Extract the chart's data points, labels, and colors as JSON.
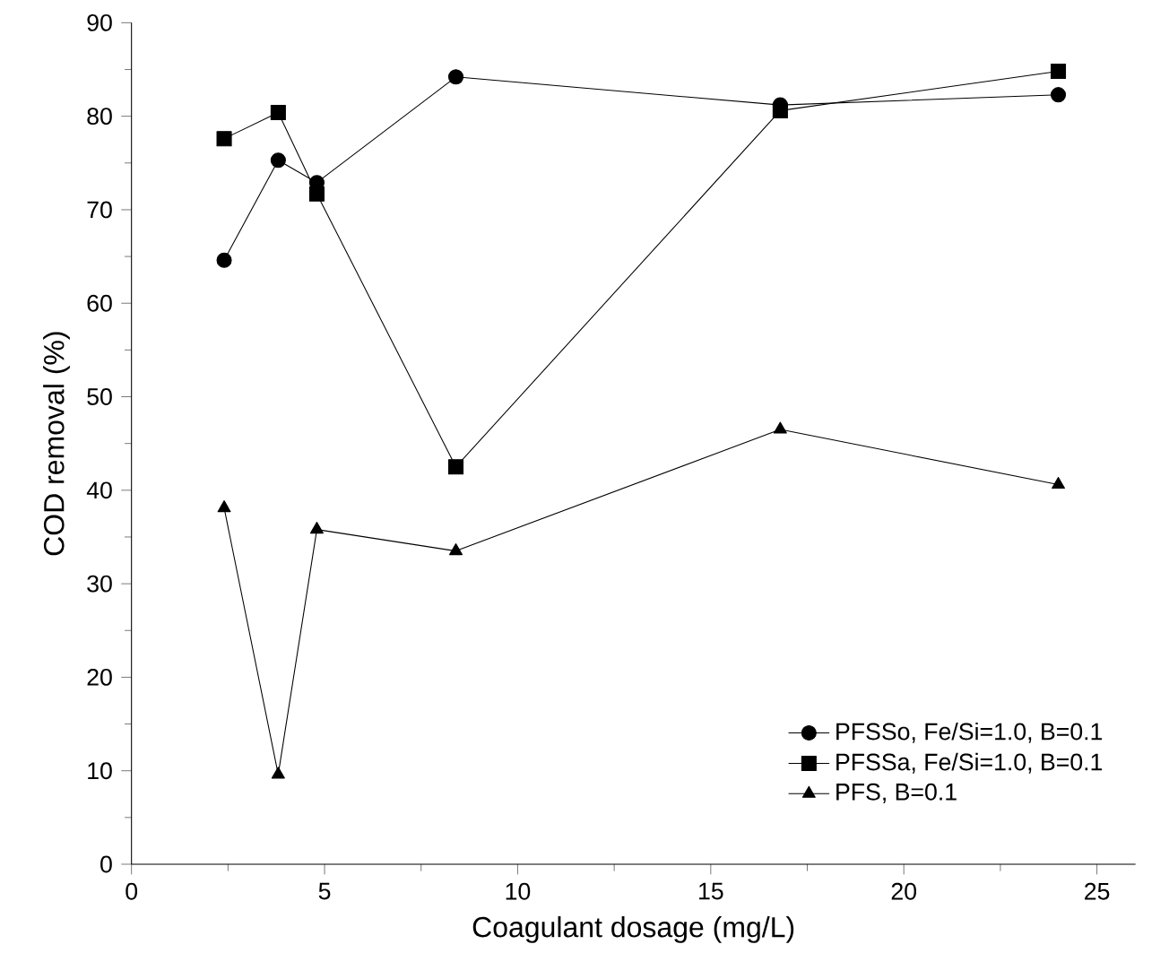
{
  "chart_data": {
    "type": "line",
    "xlabel": "Coagulant dosage (mg/L)",
    "ylabel": "COD removal (%)",
    "xlim": [
      0,
      26
    ],
    "ylim": [
      0,
      90
    ],
    "xticks": [
      0,
      5,
      10,
      15,
      20,
      25
    ],
    "yticks": [
      0,
      10,
      20,
      30,
      40,
      50,
      60,
      70,
      80,
      90
    ],
    "legend": "bottom right",
    "line_style": "solid",
    "series": [
      {
        "name": "PFSSo, Fe/Si=1.0, B=0.1",
        "color": "#000000",
        "marker": "circle",
        "x": [
          2.4,
          3.8,
          4.8,
          8.4,
          16.8,
          24
        ],
        "values": [
          64.6,
          75.3,
          72.9,
          84.2,
          81.2,
          82.3
        ]
      },
      {
        "name": "PFSSa, Fe/Si=1.0, B=0.1",
        "color": "#000000",
        "marker": "square",
        "x": [
          2.4,
          3.8,
          4.8,
          8.4,
          16.8,
          24
        ],
        "values": [
          77.6,
          80.4,
          71.7,
          42.5,
          80.6,
          84.8
        ]
      },
      {
        "name": "PFS, B=0.1",
        "color": "#000000",
        "marker": "triangle",
        "x": [
          2.4,
          3.8,
          4.8,
          8.4,
          16.8,
          24
        ],
        "values": [
          38.1,
          9.6,
          35.8,
          33.5,
          46.5,
          40.6
        ]
      }
    ]
  }
}
